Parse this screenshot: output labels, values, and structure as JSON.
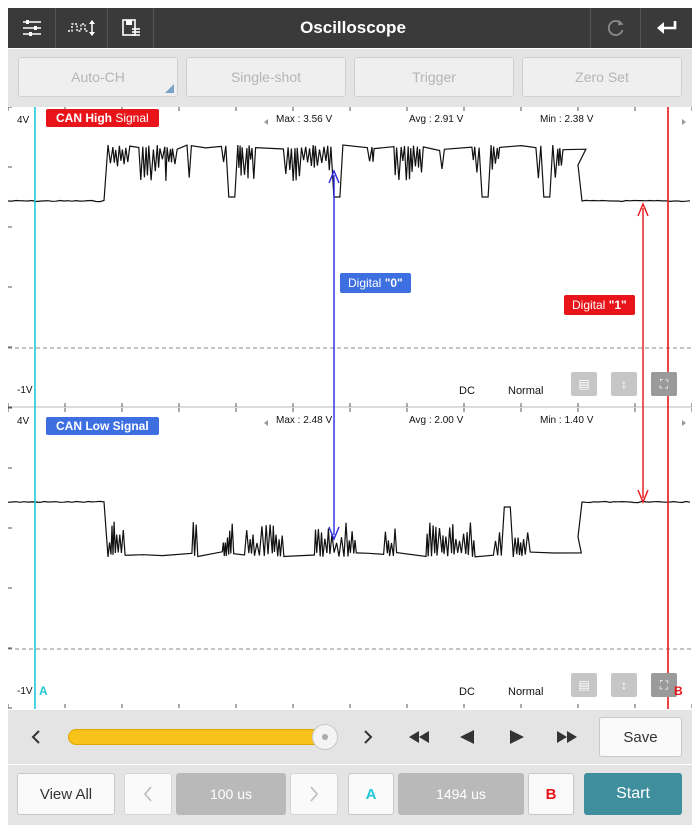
{
  "header": {
    "title": "Oscilloscope",
    "left_icons": [
      "settings-sliders-icon",
      "waveform-adjust-icon",
      "save-disk-icon"
    ],
    "right_icons": [
      "refresh-icon",
      "back-return-icon"
    ]
  },
  "function_buttons": [
    "Auto-CH",
    "Single-shot",
    "Trigger",
    "Zero Set"
  ],
  "channels": [
    {
      "name_bold": "CAN High",
      "name_normal": " Signal",
      "badge_color": "#e8141a",
      "y_max_label": "4V",
      "y_min_label": "-1V",
      "max": "Max : 3.56 V",
      "avg": "Avg : 2.91 V",
      "min": "Min : 2.38 V",
      "coupling": "DC",
      "mode": "Normal"
    },
    {
      "name_bold": "CAN Low Signal",
      "name_normal": "",
      "badge_color": "#3d6fe0",
      "y_max_label": "4V",
      "y_min_label": "-1V",
      "max": "Max : 2.48 V",
      "avg": "Avg : 2.00 V",
      "min": "Min : 1.40 V",
      "coupling": "DC",
      "mode": "Normal"
    }
  ],
  "annotations": {
    "digital0_prefix": "Digital ",
    "digital0_value": "\"0\"",
    "digital0_color": "#3d6fe0",
    "digital1_prefix": "Digital ",
    "digital1_value": "\"1\"",
    "digital1_color": "#e8141a"
  },
  "cursors": {
    "a_label": "A",
    "a_color": "#1ec8d8",
    "b_label": "B",
    "b_color": "#e8141a"
  },
  "slider": {
    "position": 0.96,
    "save_label": "Save"
  },
  "bottom_bar": {
    "view_all": "View All",
    "timebase": "100 us",
    "cursor_a": "A",
    "cursor_time": "1494 us",
    "cursor_b": "B",
    "start": "Start"
  },
  "colors": {
    "header_bg": "#3a3a3a",
    "accent_teal": "#3f8e9e",
    "slider_yellow": "#f7c21a"
  }
}
